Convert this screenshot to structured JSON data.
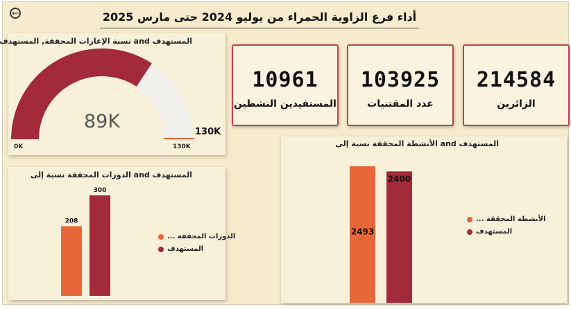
{
  "header": {
    "back_icon": "back-arrow-icon",
    "title": "أداء فرع الزاوية الحمراء من يوليو 2024 حتى مارس 2025"
  },
  "gauge": {
    "title": "المستهدف and نسبة الإعارات المحققة, المستهدف",
    "value_label": "89K",
    "min_label": "0K",
    "max_label": "130K",
    "target_label": "130K",
    "value": 89,
    "min": 0,
    "max": 130,
    "colors": {
      "fill": "#a22a3a",
      "track": "#f1efec",
      "target": "#e8653a"
    }
  },
  "kpis": [
    {
      "value": "10961",
      "label": "المستفيدين النشطين"
    },
    {
      "value": "103925",
      "label": "عدد المقتنيات"
    },
    {
      "value": "214584",
      "label": "الزائرين"
    }
  ],
  "courses_chart": {
    "title": "المستهدف and الدورات المحققة نسبة إلى",
    "legend": [
      "... الدورات المحققة",
      "المستهدف"
    ]
  },
  "activities_chart": {
    "title": "المستهدف and الأنشطة المحققة نسبة إلى",
    "legend": [
      "... الأنشطة المحققة",
      "المستهدف"
    ]
  },
  "chart_data": [
    {
      "type": "bar",
      "categories": [
        "الدورات المحققة",
        "المستهدف"
      ],
      "values": [
        208,
        300
      ],
      "data_labels": [
        "208",
        "300"
      ],
      "colors": [
        "#e8673a",
        "#a22a3a"
      ],
      "ylim": [
        0,
        300
      ],
      "legend_position": "right"
    },
    {
      "type": "bar",
      "categories": [
        "الأنشطة المحققة",
        "المستهدف"
      ],
      "values": [
        2493,
        2400
      ],
      "data_labels": [
        "2493",
        "2400"
      ],
      "colors": [
        "#e8673a",
        "#a22a3a"
      ],
      "ylim": [
        0,
        2493
      ],
      "legend_position": "right"
    }
  ]
}
